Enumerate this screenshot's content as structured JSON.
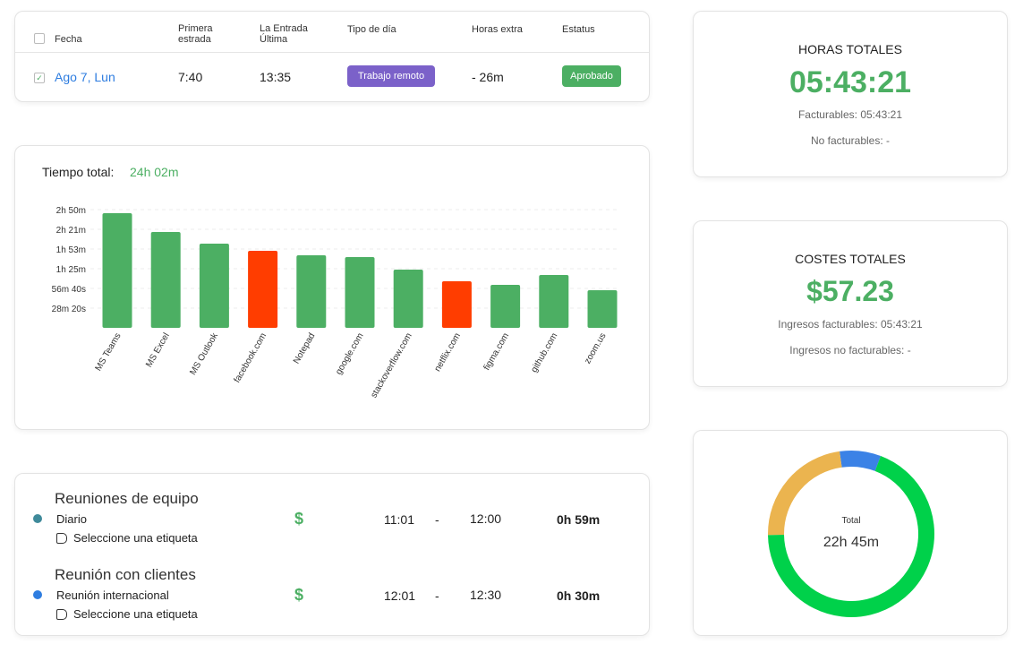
{
  "table": {
    "headers": [
      "Fecha",
      "Primera estrada",
      "La Entrada Última",
      "Tipo de día",
      "Horas extra",
      "Estatus"
    ],
    "rows": [
      [
        "Ago 7, Lun",
        "7:40",
        "13:35",
        "Trabajo remoto",
        "- 26m",
        "Aprobado"
      ]
    ]
  },
  "bar_chart": {
    "type": "bar",
    "title": "Tiempo total:",
    "total": "24h 02m",
    "categories": [
      "MS Teams",
      "MS Excel",
      "MS Outlook",
      "facebook.com",
      "Notepad",
      "google.com",
      "stackoverflow.com",
      "netflix.com",
      "figma.com",
      "github.com",
      "zoom.us"
    ],
    "values": [
      164.8,
      137.8,
      121,
      110.8,
      104.3,
      101.7,
      83.7,
      67,
      61.8,
      76,
      54.1
    ],
    "colors": [
      "#4caf63",
      "#4caf63",
      "#4caf63",
      "#ff3d00",
      "#4caf63",
      "#4caf63",
      "#4caf63",
      "#ff3d00",
      "#4caf63",
      "#4caf63",
      "#4caf63"
    ],
    "ylim": [
      0,
      170
    ],
    "yticks": [
      {
        "value": 28.33,
        "label": "28m 20s"
      },
      {
        "value": 56.67,
        "label": "56m 40s"
      },
      {
        "value": 85,
        "label": "1h 25m"
      },
      {
        "value": 113.33,
        "label": "1h 53m"
      },
      {
        "value": 141.67,
        "label": "2h 21m"
      },
      {
        "value": 170,
        "label": "2h 50m"
      }
    ],
    "grid": true
  },
  "hours_card": {
    "title": "HORAS TOTALES",
    "value": "05:43:21",
    "billable": "Facturables: 05:43:21",
    "non_billable": "No facturables: -"
  },
  "costs_card": {
    "title": "COSTES TOTALES",
    "value": "$57.23",
    "billable": "Ingresos facturables: 05:43:21",
    "non_billable": "Ingresos no facturables: -"
  },
  "meetings": [
    {
      "title": "Reuniones de equipo",
      "subtitle": "Diario",
      "tag": "Seleccione una etiqueta",
      "billing": "$",
      "start": "11:01",
      "separator": "-",
      "end": "12:00",
      "duration": "0h 59m",
      "color": "#3f8a9a"
    },
    {
      "title": "Reunión con clientes",
      "subtitle": "Reunión internacional",
      "tag": "Seleccione una etiqueta",
      "billing": "$",
      "start": "12:01",
      "separator": "-",
      "end": "12:30",
      "duration": "0h 30m",
      "color": "#2e7de0"
    }
  ],
  "donut": {
    "type": "pie",
    "center_label": "Total",
    "center_value": "22h 45m",
    "values": [
      8,
      69,
      23
    ],
    "colors": [
      "#3b82e6",
      "#00d14a",
      "#ebb44f"
    ]
  }
}
